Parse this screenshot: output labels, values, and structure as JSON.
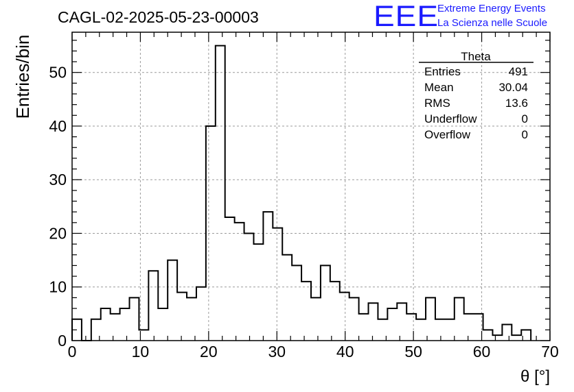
{
  "chart_data": {
    "type": "bar",
    "title": "CAGL-02-2025-05-23-00003",
    "xlabel": "θ [°]",
    "ylabel": "Entries/bin",
    "xlim": [
      0,
      70
    ],
    "ylim": [
      0,
      57.5
    ],
    "bin_width": 1.4,
    "grid": true,
    "x_ticks": [
      0,
      10,
      20,
      30,
      40,
      50,
      60,
      70
    ],
    "y_ticks": [
      0,
      10,
      20,
      30,
      40,
      50
    ],
    "values": [
      4,
      0,
      4,
      6,
      5,
      6,
      8,
      2,
      13,
      6,
      15,
      9,
      8,
      10,
      40,
      55,
      23,
      22,
      20,
      18,
      24,
      21,
      16,
      14,
      11,
      8,
      14,
      11,
      9,
      8,
      5,
      7,
      4,
      6,
      7,
      5,
      4,
      8,
      4,
      4,
      8,
      5,
      5,
      2,
      1,
      3,
      1,
      2
    ],
    "stats": {
      "title": "Theta",
      "rows": [
        {
          "label": "Entries",
          "value": "491"
        },
        {
          "label": "Mean",
          "value": "30.04"
        },
        {
          "label": "RMS",
          "value": "13.6"
        },
        {
          "label": "Underflow",
          "value": "0"
        },
        {
          "label": "Overflow",
          "value": "0"
        }
      ]
    }
  },
  "logo": {
    "mark": "EEE",
    "line1": "Extreme Energy Events",
    "line2": "La Scienza nelle Scuole",
    "color": "#1a1aff"
  }
}
